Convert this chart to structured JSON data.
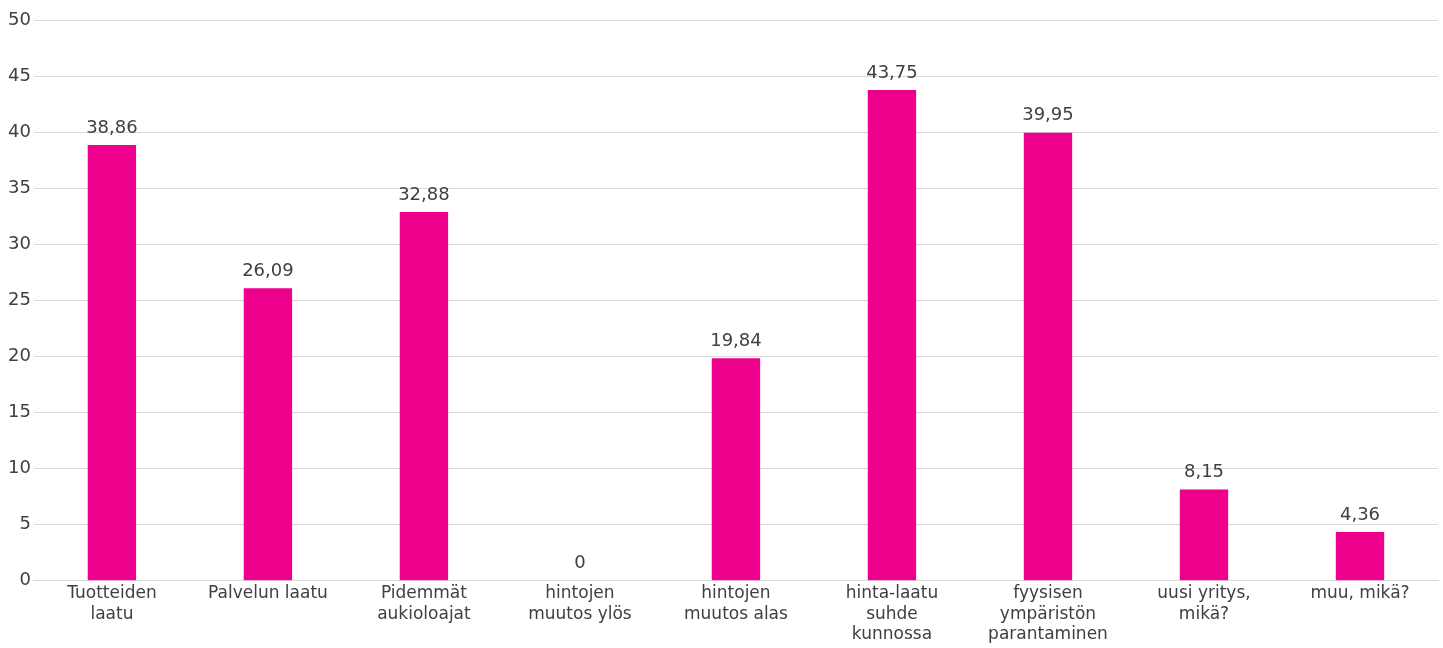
{
  "chart_data": {
    "type": "bar",
    "categories": [
      "Tuotteiden laatu",
      "Palvelun laatu",
      "Pidemmät aukioloajat",
      "hintojen muutos ylös",
      "hintojen muutos alas",
      "hinta-laatu suhde kunnossa",
      "fyysisen ympäristön parantaminen",
      "uusi yritys, mikä?",
      "muu, mikä?"
    ],
    "values": [
      38.86,
      26.09,
      32.88,
      0,
      19.84,
      43.75,
      39.95,
      8.15,
      4.36
    ],
    "value_labels": [
      "38,86",
      "26,09",
      "32,88",
      "0",
      "19,84",
      "43,75",
      "39,95",
      "8,15",
      "4,36"
    ],
    "color": "#ec008c",
    "ylim": [
      0,
      50
    ],
    "yticks": [
      0,
      5,
      10,
      15,
      20,
      25,
      30,
      35,
      40,
      45,
      50
    ],
    "grid": "y",
    "legend": false
  }
}
